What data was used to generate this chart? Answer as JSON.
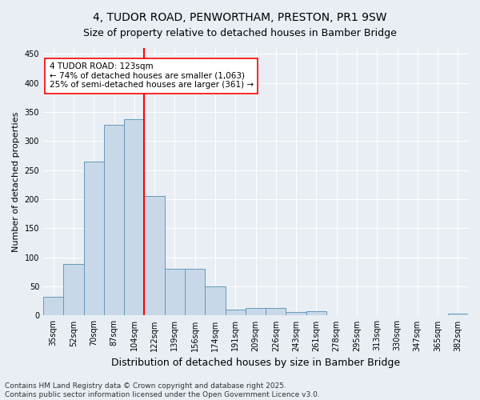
{
  "title": "4, TUDOR ROAD, PENWORTHAM, PRESTON, PR1 9SW",
  "subtitle": "Size of property relative to detached houses in Bamber Bridge",
  "xlabel": "Distribution of detached houses by size in Bamber Bridge",
  "ylabel": "Number of detached properties",
  "bar_labels": [
    "35sqm",
    "52sqm",
    "70sqm",
    "87sqm",
    "104sqm",
    "122sqm",
    "139sqm",
    "156sqm",
    "174sqm",
    "191sqm",
    "209sqm",
    "226sqm",
    "243sqm",
    "261sqm",
    "278sqm",
    "295sqm",
    "313sqm",
    "330sqm",
    "347sqm",
    "365sqm",
    "382sqm"
  ],
  "bar_values": [
    32,
    88,
    265,
    328,
    338,
    205,
    80,
    80,
    50,
    10,
    13,
    13,
    6,
    8,
    0,
    0,
    0,
    0,
    0,
    0,
    3
  ],
  "bar_color": "#c8d8e8",
  "bar_edge_color": "#6699bb",
  "vline_x": 4.5,
  "vline_color": "red",
  "ann_title": "4 TUDOR ROAD: 123sqm",
  "ann_line2": "← 74% of detached houses are smaller (1,063)",
  "ann_line3": "25% of semi-detached houses are larger (361) →",
  "ann_box_facecolor": "white",
  "ann_box_edgecolor": "red",
  "ylim": [
    0,
    460
  ],
  "yticks": [
    0,
    50,
    100,
    150,
    200,
    250,
    300,
    350,
    400,
    450
  ],
  "footer_line1": "Contains HM Land Registry data © Crown copyright and database right 2025.",
  "footer_line2": "Contains public sector information licensed under the Open Government Licence v3.0.",
  "bg_color": "#e8eef4",
  "grid_color": "white",
  "title_fontsize": 10,
  "ylabel_fontsize": 8,
  "xlabel_fontsize": 9,
  "tick_fontsize": 7,
  "ann_fontsize": 7.5,
  "footer_fontsize": 6.5
}
